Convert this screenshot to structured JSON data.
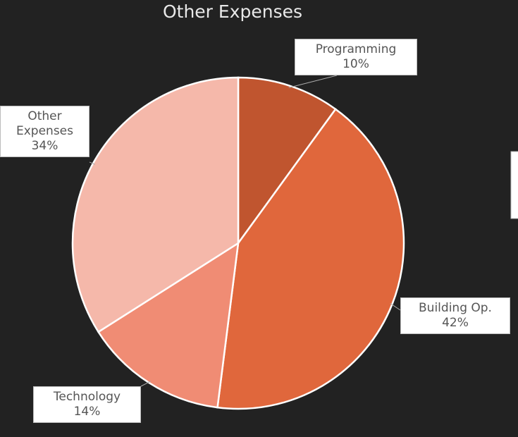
{
  "chart_data": {
    "type": "pie",
    "title": "Other Expenses",
    "categories": [
      "Programming",
      "Building Op.",
      "Technology",
      "Other Expenses"
    ],
    "values": [
      10,
      42,
      14,
      34
    ],
    "value_labels": [
      "10%",
      "42%",
      "14%",
      "34%"
    ],
    "colors": [
      "#c0552f",
      "#e0673c",
      "#f08c74",
      "#f5b8aa"
    ]
  }
}
